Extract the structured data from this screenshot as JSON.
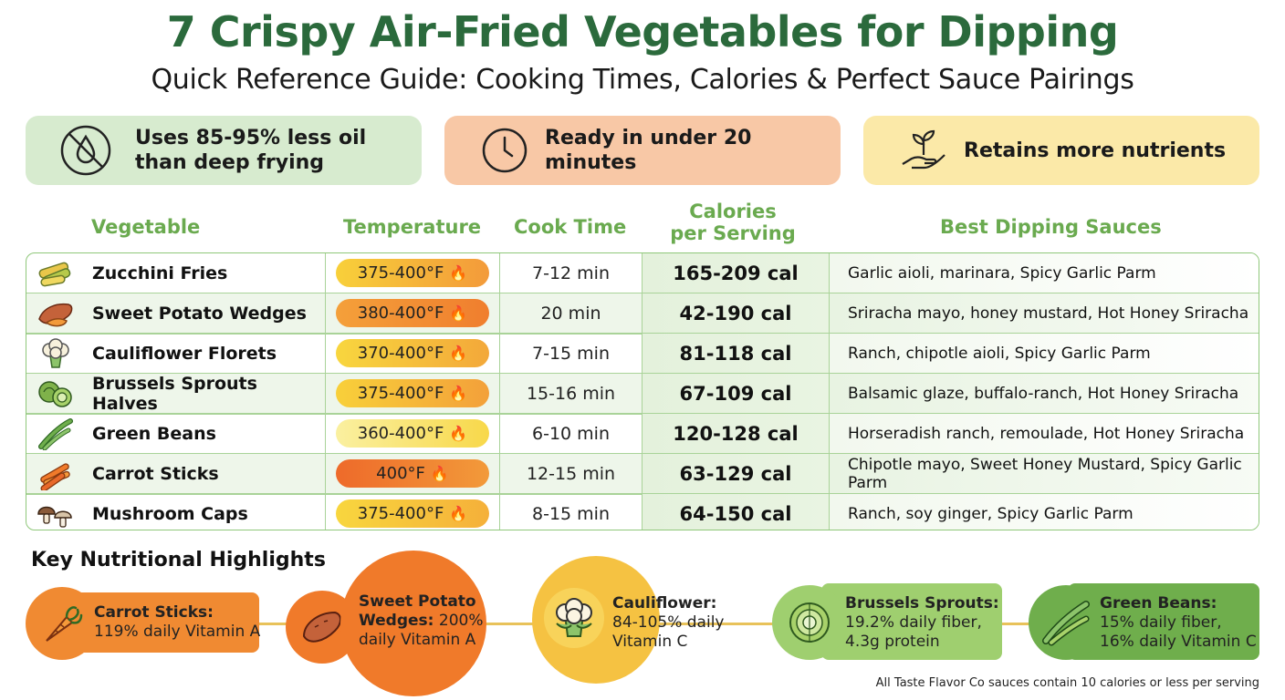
{
  "title": "7 Crispy Air-Fried Vegetables for Dipping",
  "subtitle": "Quick Reference Guide: Cooking Times, Calories & Perfect Sauce Pairings",
  "benefits": [
    {
      "icon": "no-oil-icon",
      "line1": "Uses 85-95% less oil",
      "line2": "than deep frying"
    },
    {
      "icon": "clock-icon",
      "line1": "Ready in under 20 minutes"
    },
    {
      "icon": "sprout-hand-icon",
      "line1": "Retains more nutrients"
    }
  ],
  "table": {
    "headers": {
      "vegetable": "Vegetable",
      "temperature": "Temperature",
      "cook_time": "Cook Time",
      "calories_1": "Calories",
      "calories_2": "per Serving",
      "sauces": "Best Dipping Sauces"
    },
    "rows": [
      {
        "icon": "zucchini-icon",
        "name": "Zucchini Fries",
        "temp": "375-400°F",
        "time": "7-12 min",
        "cal": "165-209 cal",
        "sauces": "Garlic aioli, marinara, Spicy Garlic Parm"
      },
      {
        "icon": "sweet-potato-icon",
        "name": "Sweet Potato Wedges",
        "temp": "380-400°F",
        "time": "20 min",
        "cal": "42-190 cal",
        "sauces": "Sriracha mayo, honey mustard, Hot Honey Sriracha"
      },
      {
        "icon": "cauliflower-icon",
        "name": "Cauliflower Florets",
        "temp": "370-400°F",
        "time": "7-15 min",
        "cal": "81-118 cal",
        "sauces": "Ranch, chipotle aioli, Spicy Garlic Parm"
      },
      {
        "icon": "brussels-sprouts-icon",
        "name": "Brussels Sprouts Halves",
        "temp": "375-400°F",
        "time": "15-16 min",
        "cal": "67-109 cal",
        "sauces": "Balsamic glaze, buffalo-ranch, Hot Honey Sriracha"
      },
      {
        "icon": "green-beans-icon",
        "name": "Green Beans",
        "temp": "360-400°F",
        "time": "6-10 min",
        "cal": "120-128 cal",
        "sauces": "Horseradish ranch, remoulade, Hot Honey Sriracha"
      },
      {
        "icon": "carrot-sticks-icon",
        "name": "Carrot Sticks",
        "temp": "400°F",
        "time": "12-15 min",
        "cal": "63-129 cal",
        "sauces": "Chipotle mayo, Sweet Honey Mustard, Spicy Garlic Parm"
      },
      {
        "icon": "mushroom-icon",
        "name": "Mushroom Caps",
        "temp": "375-400°F",
        "time": "8-15 min",
        "cal": "64-150 cal",
        "sauces": "Ranch, soy ginger, Spicy Garlic Parm"
      }
    ]
  },
  "highlights": {
    "heading": "Key Nutritional Highlights",
    "items": [
      {
        "icon": "carrot-icon",
        "bold": "Carrot Sticks:",
        "line1": "119% daily Vitamin A",
        "color": "#f08a32"
      },
      {
        "icon": "sweet-potato-icon",
        "bold1": "Sweet Potato",
        "bold2": "Wedges:",
        "rest2": " 200%",
        "line3": "daily Vitamin A",
        "color": "#f07a2a"
      },
      {
        "icon": "cauliflower-icon",
        "bold": "Cauliflower:",
        "line1": "84-105% daily",
        "line2": "Vitamin C",
        "color": "#f5c242"
      },
      {
        "icon": "brussels-sprouts-icon",
        "bold": "Brussels Sprouts:",
        "line1": "19.2% daily fiber,",
        "line2": "4.3g protein",
        "color": "#9fcf6f"
      },
      {
        "icon": "green-beans-icon",
        "bold": "Green Beans:",
        "line1": "15% daily fiber,",
        "line2": "16% daily Vitamin C",
        "color": "#6fae4c"
      }
    ]
  },
  "footnote": "All Taste Flavor Co sauces contain 10 calories or less per serving",
  "colors": {
    "title_green": "#2b6a3c",
    "header_green": "#6aaa4f",
    "table_border": "#8fc77a"
  }
}
